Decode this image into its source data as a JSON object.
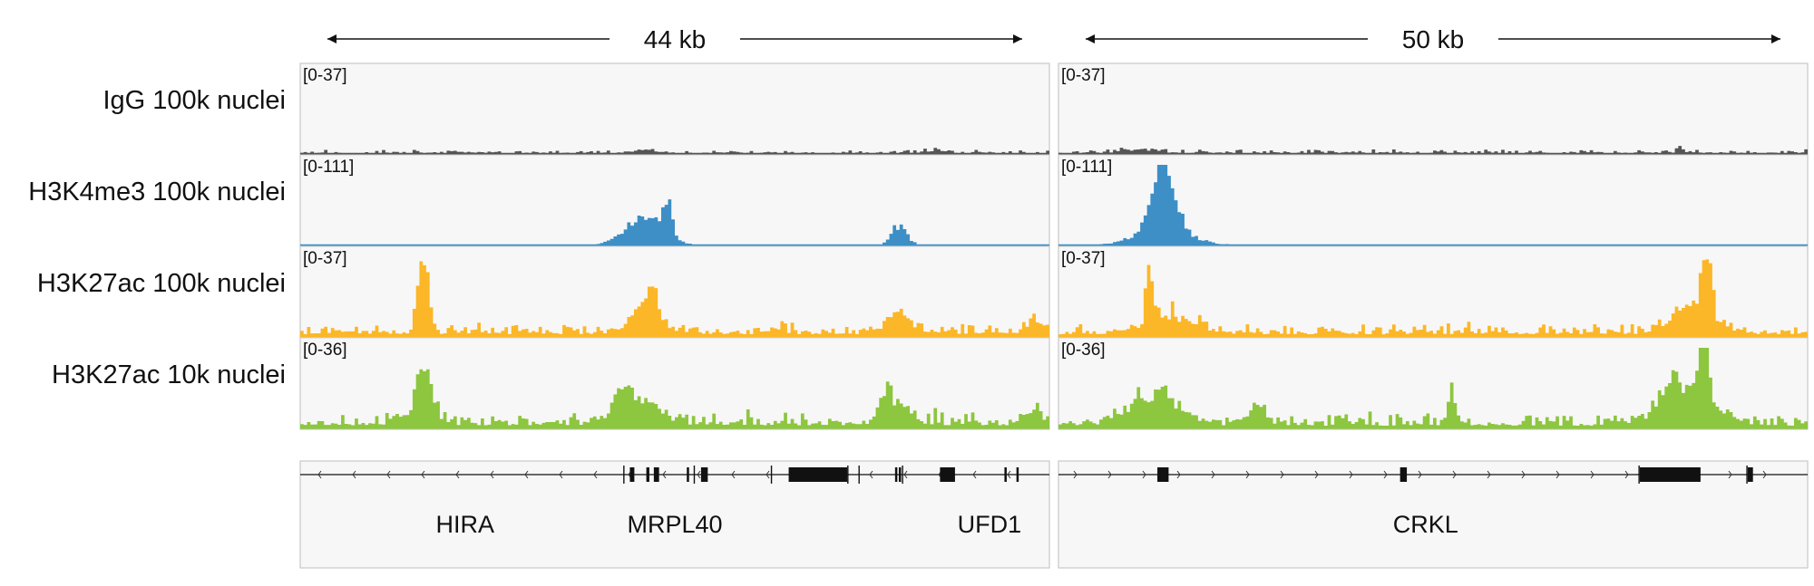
{
  "panels": [
    {
      "scale_label": "44 kb",
      "gene_strand": "-",
      "genes": [
        {
          "name": "HIRA",
          "label_at": 0.22
        },
        {
          "name": "MRPL40",
          "label_at": 0.5
        },
        {
          "name": "UFD1",
          "label_at": 0.92
        }
      ],
      "gene_features": {
        "exons": [
          [
            0.44,
            0.446
          ],
          [
            0.462,
            0.466
          ],
          [
            0.472,
            0.479
          ],
          [
            0.516,
            0.518
          ],
          [
            0.535,
            0.544
          ],
          [
            0.652,
            0.73
          ],
          [
            0.794,
            0.797
          ],
          [
            0.799,
            0.802
          ],
          [
            0.854,
            0.874
          ],
          [
            0.94,
            0.942
          ],
          [
            0.956,
            0.958
          ]
        ],
        "line_marks": [
          0.432,
          0.526,
          0.629,
          0.731,
          0.746,
          0.804
        ]
      },
      "tracks": [
        {
          "name": "IgG 100k nuclei",
          "range": "[0-37]",
          "max": 37,
          "color": "#555555",
          "peaks": [
            [
              0.46,
              0.012,
              1.5
            ],
            [
              0.85,
              0.015,
              1
            ]
          ],
          "noise": 0.8,
          "seed": 3
        },
        {
          "name": "H3K4me3 100k nuclei",
          "range": "[0-111]",
          "max": 111,
          "color": "#3d8fc6",
          "peaks": [
            [
              0.46,
              0.025,
              38
            ],
            [
              0.49,
              0.006,
              45
            ],
            [
              0.8,
              0.01,
              28
            ]
          ],
          "noise": 0.3,
          "seed": 5
        },
        {
          "name": "H3K27ac 100k nuclei",
          "range": "[0-37]",
          "max": 37,
          "color": "#fbb727",
          "peaks": [
            [
              0.165,
              0.007,
              33
            ],
            [
              0.46,
              0.02,
              11
            ],
            [
              0.47,
              0.006,
              13
            ],
            [
              0.8,
              0.015,
              9
            ],
            [
              0.98,
              0.01,
              6
            ]
          ],
          "noise": 3.2,
          "seed": 7
        },
        {
          "name": "H3K27ac 10k nuclei",
          "range": "[0-36]",
          "max": 36,
          "color": "#8dc63f",
          "peaks": [
            [
              0.165,
              0.012,
              20
            ],
            [
              0.43,
              0.01,
              13
            ],
            [
              0.46,
              0.02,
              10
            ],
            [
              0.78,
              0.008,
              10
            ],
            [
              0.8,
              0.015,
              9
            ],
            [
              0.98,
              0.01,
              6
            ]
          ],
          "noise": 3.5,
          "seed": 11
        }
      ]
    },
    {
      "scale_label": "50 kb",
      "gene_strand": "+",
      "genes": [
        {
          "name": "CRKL",
          "label_at": 0.49
        }
      ],
      "gene_features": {
        "exons": [
          [
            0.132,
            0.147
          ],
          [
            0.456,
            0.465
          ],
          [
            0.776,
            0.857
          ],
          [
            0.92,
            0.927
          ]
        ],
        "line_marks": [
          0.775,
          0.919
        ]
      },
      "tracks": [
        {
          "name": "IgG 100k nuclei",
          "range": "[0-37]",
          "max": 37,
          "color": "#555555",
          "peaks": [
            [
              0.11,
              0.02,
              1.5
            ],
            [
              0.83,
              0.004,
              2.5
            ]
          ],
          "noise": 0.9,
          "seed": 13
        },
        {
          "name": "H3K4me3 100k nuclei",
          "range": "[0-111]",
          "max": 111,
          "color": "#3d8fc6",
          "peaks": [
            [
              0.14,
              0.015,
              95
            ],
            [
              0.14,
              0.035,
              22
            ]
          ],
          "noise": 0.3,
          "seed": 17
        },
        {
          "name": "H3K27ac 100k nuclei",
          "range": "[0-37]",
          "max": 37,
          "color": "#fbb727",
          "peaks": [
            [
              0.122,
              0.004,
              30
            ],
            [
              0.15,
              0.03,
              8
            ],
            [
              0.85,
              0.025,
              12
            ],
            [
              0.865,
              0.006,
              30
            ]
          ],
          "noise": 3.0,
          "seed": 19
        },
        {
          "name": "H3K27ac 10k nuclei",
          "range": "[0-36]",
          "max": 36,
          "color": "#8dc63f",
          "peaks": [
            [
              0.13,
              0.03,
              13
            ],
            [
              0.265,
              0.012,
              8
            ],
            [
              0.525,
              0.006,
              12
            ],
            [
              0.82,
              0.02,
              12
            ],
            [
              0.86,
              0.007,
              33
            ],
            [
              0.85,
              0.035,
              8
            ]
          ],
          "noise": 3.0,
          "seed": 23
        }
      ]
    }
  ]
}
